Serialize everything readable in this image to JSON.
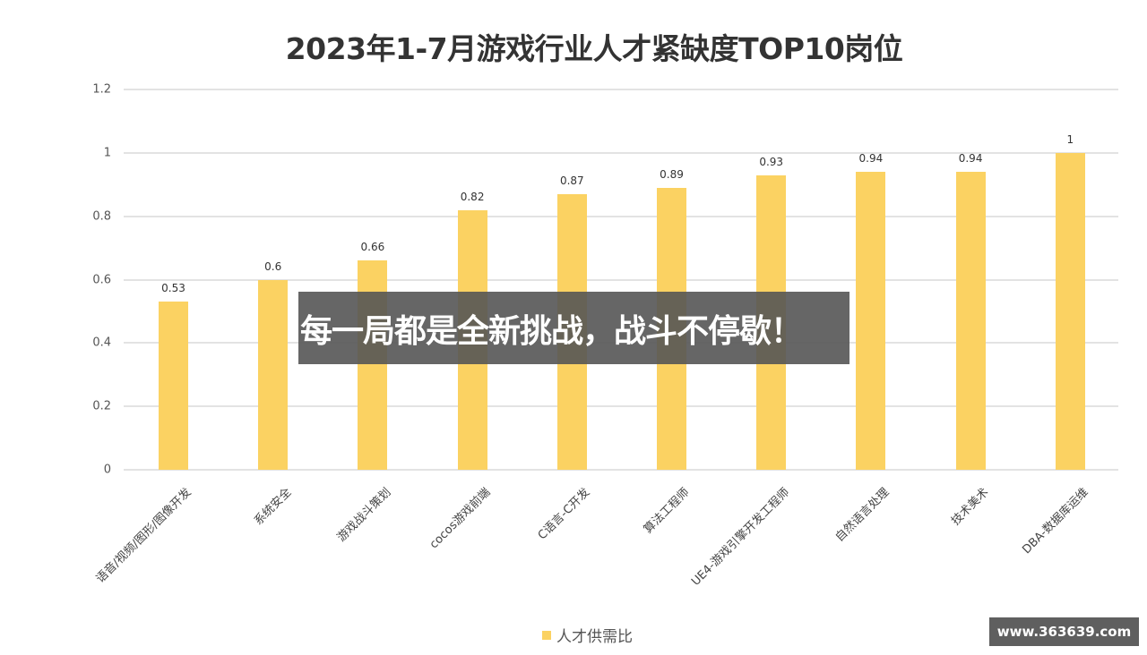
{
  "chart_data": {
    "type": "bar",
    "title": "2023年1-7月游戏行业人才紧缺度TOP10岗位",
    "xlabel": "",
    "ylabel": "",
    "ylim": [
      0,
      1.2
    ],
    "yticks": [
      "0",
      "0.2",
      "0.4",
      "0.6",
      "0.8",
      "1",
      "1.2"
    ],
    "grid": true,
    "legend_position": "bottom",
    "categories": [
      "语音/视频/图形/图像开发",
      "系统安全",
      "游戏战斗策划",
      "cocos游戏前端",
      "C语言-C开发",
      "算法工程师",
      "UE4-游戏引擎开发工程师",
      "自然语言处理",
      "技术美术",
      "DBA-数据库运维"
    ],
    "series": [
      {
        "name": "人才供需比",
        "color": "#fbd262",
        "values": [
          0.53,
          0.6,
          0.66,
          0.82,
          0.87,
          0.89,
          0.93,
          0.94,
          0.94,
          1
        ]
      }
    ],
    "data_labels": [
      "0.53",
      "0.6",
      "0.66",
      "0.82",
      "0.87",
      "0.89",
      "0.93",
      "0.94",
      "0.94",
      "1"
    ]
  },
  "overlay": {
    "banner_text": "每一局都是全新挑战，战斗不停歇！"
  },
  "watermark": {
    "text": "www.363639.com"
  },
  "colors": {
    "bar": "#fbd262",
    "grid": "#e3e3e3",
    "title": "#333333"
  }
}
